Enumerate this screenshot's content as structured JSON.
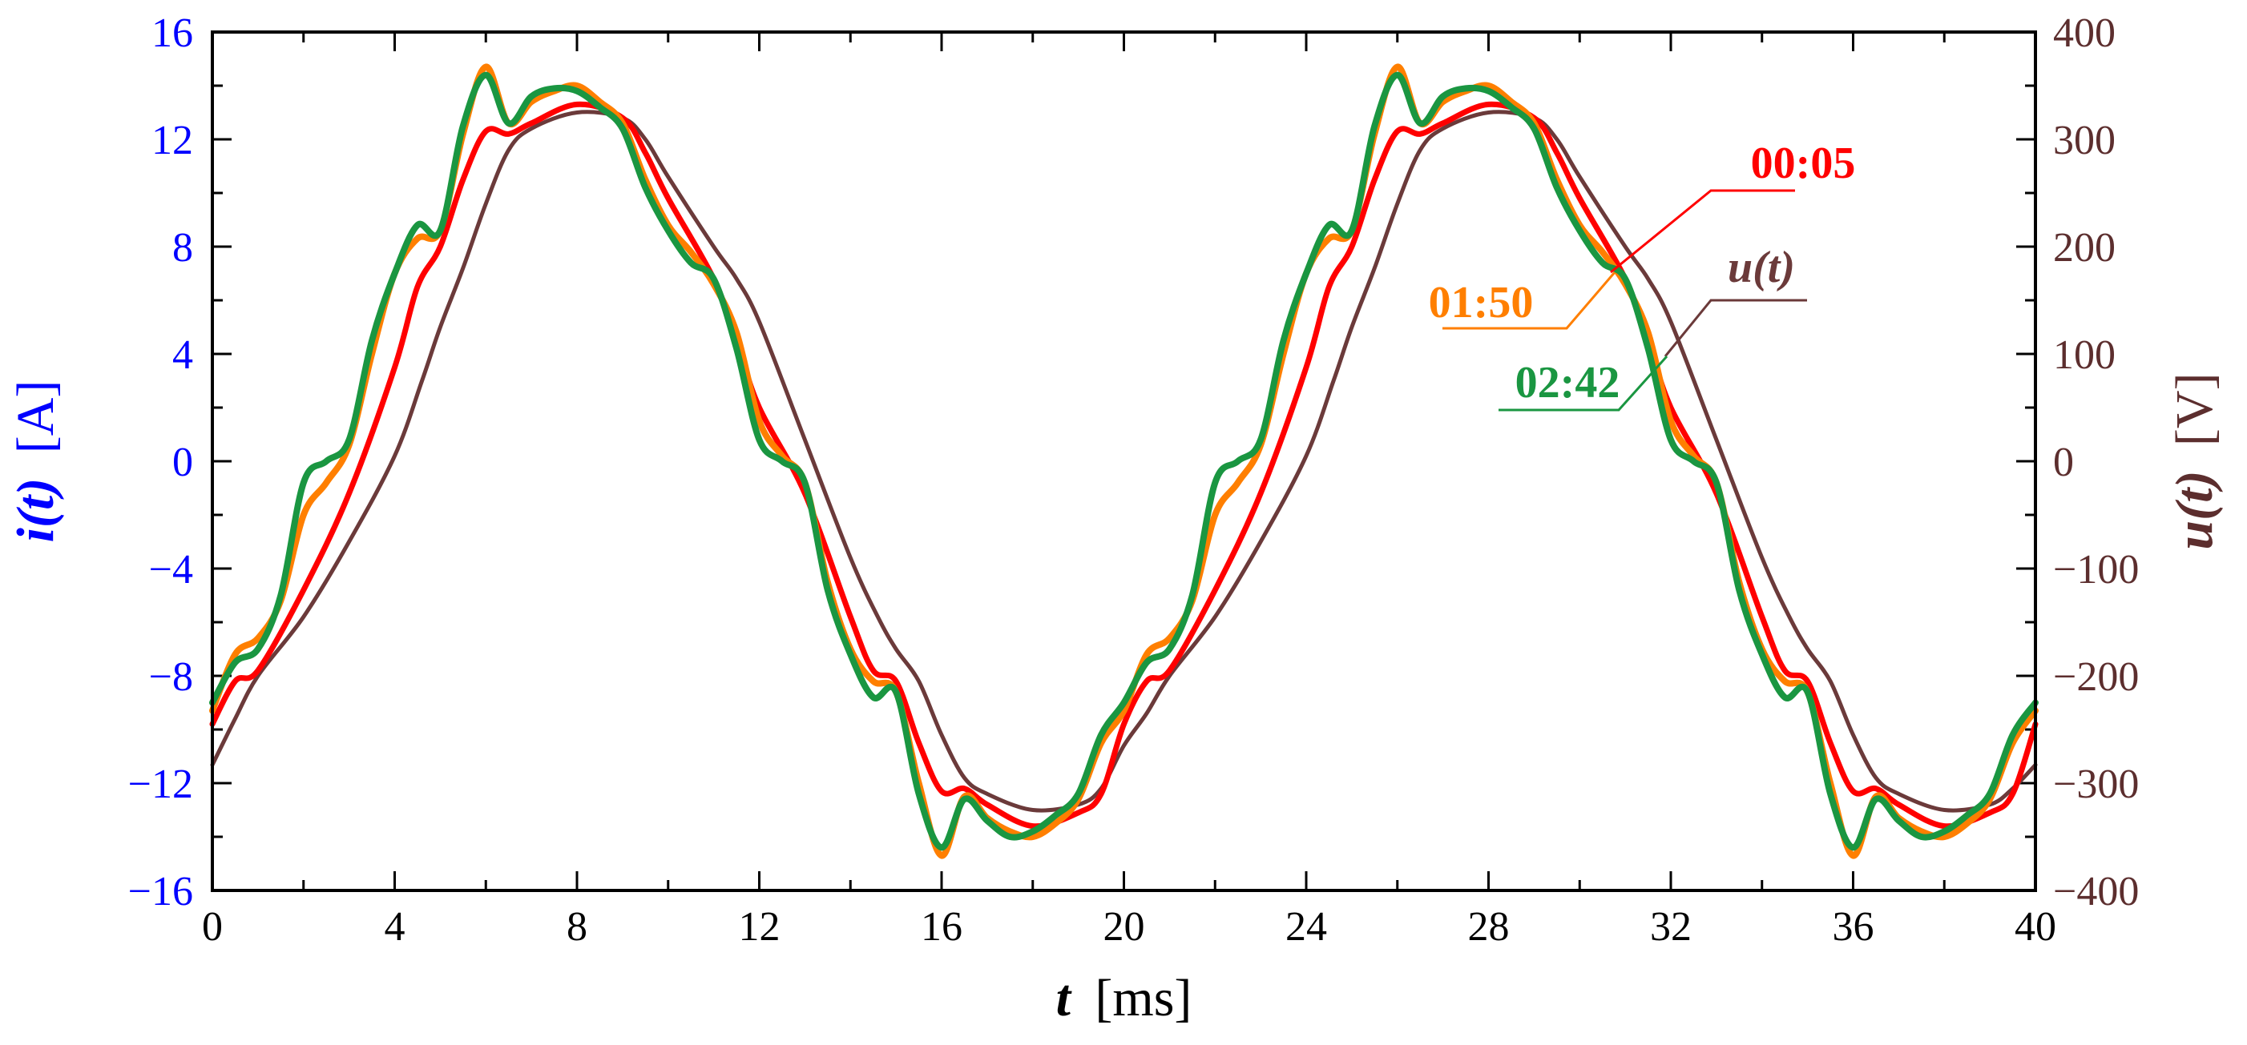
{
  "chart_data": {
    "type": "line",
    "x_axis": {
      "label_symbol": "t",
      "label_unit": "[ms]",
      "range": [
        0,
        40
      ],
      "ticks": [
        0,
        4,
        8,
        12,
        16,
        20,
        24,
        28,
        32,
        36,
        40
      ]
    },
    "y_left": {
      "label_symbol": "i(t)",
      "label_unit": "[A]",
      "range": [
        -16,
        16
      ],
      "ticks": [
        -16,
        -12,
        -8,
        -4,
        0,
        4,
        8,
        12,
        16
      ],
      "tick_labels": [
        "−16",
        "−12",
        "−8",
        "−4",
        "0",
        "4",
        "8",
        "12",
        "16"
      ],
      "color": "#0000ff"
    },
    "y_right": {
      "label_symbol": "u(t)",
      "label_unit": "[V]",
      "range": [
        -400,
        400
      ],
      "ticks": [
        -400,
        -300,
        -200,
        -100,
        0,
        100,
        200,
        300,
        400
      ],
      "tick_labels": [
        "−400",
        "−300",
        "−200",
        "−100",
        "0",
        "100",
        "200",
        "300",
        "400"
      ],
      "color": "#5c2e2e"
    },
    "series": [
      {
        "name": "u(t)",
        "axis": "right",
        "color": "#6b3a3a",
        "x": [
          0,
          0.5,
          1,
          2,
          3,
          4,
          4.6,
          5,
          5.5,
          6,
          6.5,
          7,
          8,
          9,
          9.5,
          10,
          11,
          11.5,
          12,
          13,
          14,
          14.6,
          15,
          15.5,
          16,
          16.5,
          17,
          18,
          19,
          19.5,
          20,
          20.5,
          21,
          22,
          23,
          24,
          24.6,
          25,
          25.5,
          26,
          26.5,
          27,
          28,
          29,
          29.5,
          30,
          31,
          31.5,
          32,
          33,
          34,
          34.6,
          35,
          35.5,
          36,
          36.5,
          37,
          38,
          39,
          39.5,
          40
        ],
        "values": [
          -283,
          -240,
          -200,
          -145,
          -75,
          5,
          75,
          125,
          180,
          240,
          290,
          310,
          325,
          320,
          300,
          265,
          200,
          170,
          130,
          20,
          -90,
          -145,
          -175,
          -205,
          -255,
          -295,
          -310,
          -325,
          -320,
          -305,
          -265,
          -235,
          -200,
          -145,
          -75,
          5,
          75,
          125,
          180,
          240,
          290,
          310,
          325,
          320,
          300,
          265,
          200,
          170,
          130,
          20,
          -90,
          -145,
          -175,
          -205,
          -255,
          -295,
          -310,
          -325,
          -320,
          -305,
          -283
        ]
      },
      {
        "name": "00:05",
        "axis": "left",
        "color": "#ff0000",
        "x": [
          0,
          0.5,
          1,
          2,
          3,
          4,
          4.5,
          5,
          5.5,
          6,
          6.5,
          7,
          8,
          9,
          9.5,
          10,
          11,
          11.5,
          12,
          13,
          14,
          14.5,
          15,
          15.5,
          16,
          16.5,
          17,
          18,
          19,
          19.5,
          20,
          20.5,
          21,
          22,
          23,
          24,
          24.5,
          25,
          25.5,
          26,
          26.5,
          27,
          28,
          29,
          29.5,
          30,
          31,
          31.5,
          32,
          33,
          34,
          34.5,
          35,
          35.5,
          36,
          36.5,
          37,
          38,
          39,
          39.5,
          40
        ],
        "values": [
          -9.8,
          -8.2,
          -7.8,
          -4.8,
          -1.2,
          3.5,
          6.5,
          8.0,
          10.5,
          12.3,
          12.2,
          12.6,
          13.3,
          12.8,
          11.5,
          9.8,
          6.8,
          4.5,
          2.0,
          -1.2,
          -5.8,
          -7.8,
          -8.2,
          -10.5,
          -12.3,
          -12.2,
          -12.8,
          -13.6,
          -13.1,
          -12.4,
          -9.8,
          -8.2,
          -7.8,
          -4.8,
          -1.2,
          3.5,
          6.5,
          8.0,
          10.5,
          12.3,
          12.2,
          12.6,
          13.3,
          12.8,
          11.5,
          9.8,
          6.8,
          4.5,
          2.0,
          -1.2,
          -5.8,
          -7.8,
          -8.2,
          -10.5,
          -12.3,
          -12.2,
          -12.8,
          -13.6,
          -13.1,
          -12.4,
          -9.8
        ]
      },
      {
        "name": "01:50",
        "axis": "left",
        "color": "#ff7f00",
        "x": [
          0,
          0.5,
          1,
          1.5,
          2,
          2.5,
          3,
          3.5,
          4,
          4.5,
          5,
          5.5,
          6,
          6.5,
          7,
          7.5,
          8,
          8.5,
          9,
          9.5,
          10,
          10.5,
          11,
          11.5,
          12,
          12.5,
          13,
          13.5,
          14,
          14.5,
          15,
          15.5,
          16,
          16.5,
          17,
          17.5,
          18,
          18.5,
          19,
          19.5,
          20,
          20.5,
          21,
          21.5,
          22,
          22.5,
          23,
          23.5,
          24,
          24.5,
          25,
          25.5,
          26,
          26.5,
          27,
          27.5,
          28,
          28.5,
          29,
          29.5,
          30,
          30.5,
          31,
          31.5,
          32,
          32.5,
          33,
          33.5,
          34,
          34.5,
          35,
          35.5,
          36,
          36.5,
          37,
          37.5,
          38,
          38.5,
          39,
          39.5,
          40
        ],
        "values": [
          -9.3,
          -7.2,
          -6.6,
          -5.2,
          -2.0,
          -0.8,
          0.6,
          4.0,
          7.0,
          8.3,
          8.6,
          12.2,
          14.7,
          12.6,
          13.4,
          13.8,
          14.0,
          13.4,
          12.6,
          10.5,
          8.8,
          7.8,
          6.6,
          4.8,
          1.5,
          0.2,
          -0.8,
          -4.5,
          -7.0,
          -8.2,
          -8.6,
          -12.0,
          -14.7,
          -12.5,
          -13.3,
          -13.8,
          -14.0,
          -13.5,
          -12.6,
          -10.5,
          -9.3,
          -7.2,
          -6.6,
          -5.2,
          -2.0,
          -0.8,
          0.6,
          4.0,
          7.0,
          8.3,
          8.6,
          12.2,
          14.7,
          12.6,
          13.4,
          13.8,
          14.0,
          13.4,
          12.6,
          10.5,
          8.8,
          7.8,
          6.6,
          4.8,
          1.5,
          0.2,
          -0.8,
          -4.5,
          -7.0,
          -8.2,
          -8.6,
          -12.0,
          -14.7,
          -12.5,
          -13.3,
          -13.8,
          -14.0,
          -13.5,
          -12.6,
          -10.5,
          -9.3
        ]
      },
      {
        "name": "02:42",
        "axis": "left",
        "color": "#1a9641",
        "x": [
          0,
          0.5,
          1,
          1.5,
          2,
          2.5,
          3,
          3.5,
          4,
          4.5,
          5,
          5.5,
          6,
          6.5,
          7,
          7.5,
          8,
          8.5,
          9,
          9.5,
          10,
          10.5,
          11,
          11.5,
          12,
          12.5,
          13,
          13.5,
          14,
          14.5,
          15,
          15.5,
          16,
          16.5,
          17,
          17.5,
          18,
          18.5,
          19,
          19.5,
          20,
          20.5,
          21,
          21.5,
          22,
          22.5,
          23,
          23.5,
          24,
          24.5,
          25,
          25.5,
          26,
          26.5,
          27,
          27.5,
          28,
          28.5,
          29,
          29.5,
          30,
          30.5,
          31,
          31.5,
          32,
          32.5,
          33,
          33.5,
          34,
          34.5,
          35,
          35.5,
          36,
          36.5,
          37,
          37.5,
          38,
          38.5,
          39,
          39.5,
          40
        ],
        "values": [
          -9.0,
          -7.5,
          -7.0,
          -5.0,
          -0.8,
          0.0,
          0.8,
          4.5,
          7.0,
          8.8,
          8.6,
          12.5,
          14.4,
          12.6,
          13.6,
          13.9,
          13.8,
          13.2,
          12.4,
          10.2,
          8.6,
          7.4,
          6.8,
          4.2,
          0.8,
          0.0,
          -0.8,
          -4.8,
          -7.2,
          -8.8,
          -8.6,
          -12.4,
          -14.4,
          -12.6,
          -13.4,
          -14.0,
          -13.8,
          -13.2,
          -12.4,
          -10.2,
          -9.0,
          -7.5,
          -7.0,
          -5.0,
          -0.8,
          0.0,
          0.8,
          4.5,
          7.0,
          8.8,
          8.6,
          12.5,
          14.4,
          12.6,
          13.6,
          13.9,
          13.8,
          13.2,
          12.4,
          10.2,
          8.6,
          7.4,
          6.8,
          4.2,
          0.8,
          0.0,
          -0.8,
          -4.8,
          -7.2,
          -8.8,
          -8.6,
          -12.4,
          -14.4,
          -12.6,
          -13.4,
          -14.0,
          -13.8,
          -13.2,
          -12.4,
          -10.2,
          -9.0
        ]
      }
    ],
    "annotations": [
      {
        "text": "00:05",
        "series": "00:05",
        "color": "#ff0000",
        "placement": "upper-right"
      },
      {
        "text": "u(t)",
        "series": "u(t)",
        "color": "#6b3a3a",
        "placement": "right"
      },
      {
        "text": "01:50",
        "series": "01:50",
        "color": "#ff7f00",
        "placement": "right"
      },
      {
        "text": "02:42",
        "series": "02:42",
        "color": "#1a9641",
        "placement": "right"
      }
    ],
    "grid": false
  }
}
